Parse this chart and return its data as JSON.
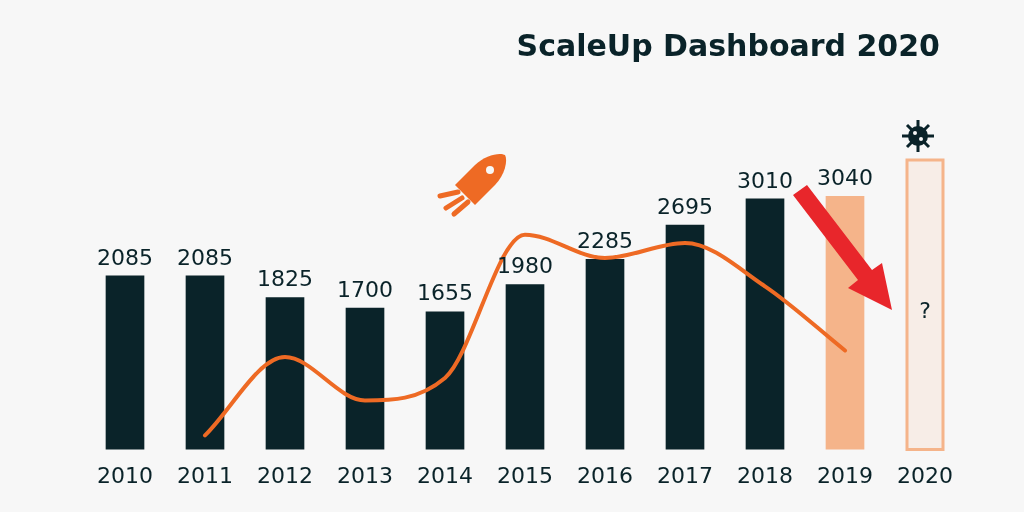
{
  "chart_data": {
    "type": "bar",
    "title": "ScaleUp Dashboard 2020",
    "categories": [
      "2010",
      "2011",
      "2012",
      "2013",
      "2014",
      "2015",
      "2016",
      "2017",
      "2018",
      "2019",
      "2020"
    ],
    "series": [
      {
        "values": [
          2085,
          2085,
          1825,
          1700,
          1655,
          1980,
          2285,
          2695,
          3010,
          3040,
          null
        ],
        "colors": [
          "#0a2329",
          "#0a2329",
          "#0a2329",
          "#0a2329",
          "#0a2329",
          "#0a2329",
          "#0a2329",
          "#0a2329",
          "#0a2329",
          "#f5b48a",
          null
        ],
        "value_labels": [
          "2085",
          "2085",
          "1825",
          "1700",
          "1655",
          "1980",
          "2285",
          "2695",
          "3010",
          "3040",
          null
        ]
      },
      {
        "type": "line",
        "color": "#ee6a24",
        "values": [
          null,
          170,
          1110,
          590,
          860,
          2580,
          2300,
          2480,
          1960,
          1190,
          null
        ]
      }
    ],
    "bands": [
      {
        "axis": "x",
        "from": "2020",
        "to": "2020",
        "label": "?",
        "color": "#f5b48a"
      }
    ],
    "tick_labels": "x",
    "legend": false
  }
}
